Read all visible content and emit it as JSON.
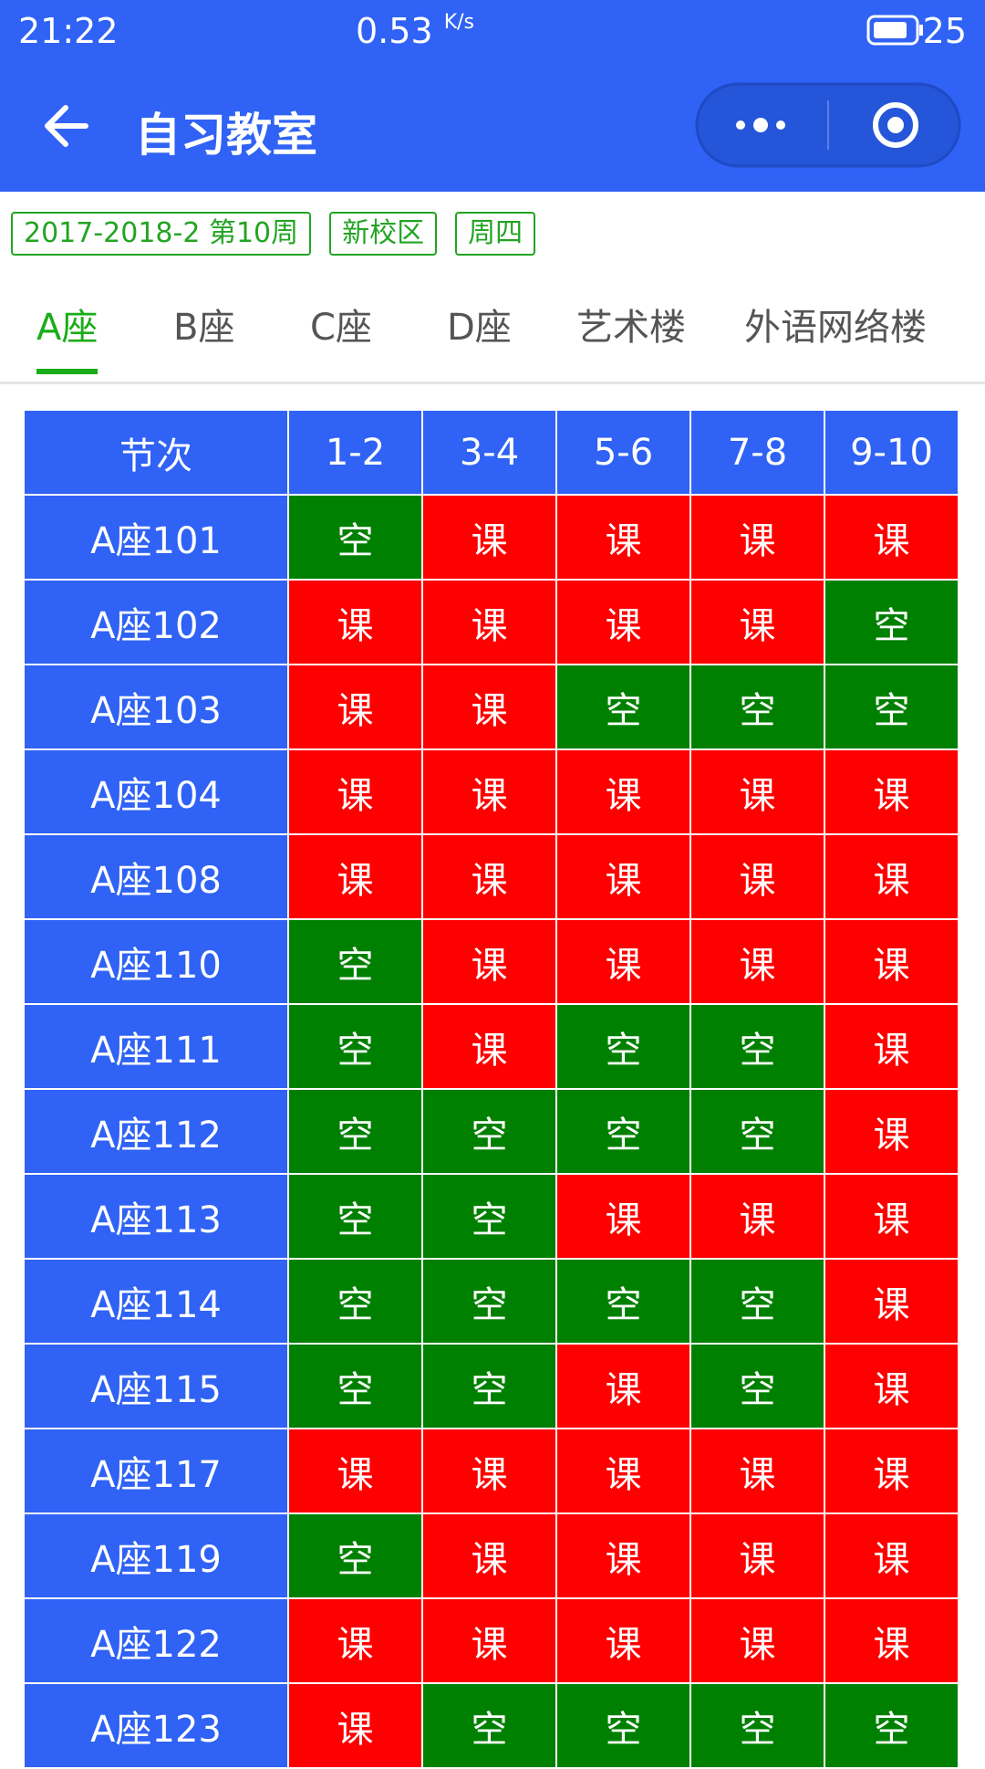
{
  "status_bar": {
    "time": "21:22",
    "speed": "0.53",
    "speed_unit": "K/s",
    "battery": "25"
  },
  "header": {
    "title": "自习教室"
  },
  "tags": [
    "2017-2018-2 第10周",
    "新校区",
    "周四"
  ],
  "tabs": [
    "A座",
    "B座",
    "C座",
    "D座",
    "艺术楼",
    "外语网络楼"
  ],
  "active_tab": 0,
  "table": {
    "colors": {
      "空": "#008000",
      "课": "#ff0000"
    },
    "header": [
      "节次",
      "1-2",
      "3-4",
      "5-6",
      "7-8",
      "9-10"
    ],
    "rows": [
      [
        "A座101",
        "空",
        "课",
        "课",
        "课",
        "课"
      ],
      [
        "A座102",
        "课",
        "课",
        "课",
        "课",
        "空"
      ],
      [
        "A座103",
        "课",
        "课",
        "空",
        "空",
        "空"
      ],
      [
        "A座104",
        "课",
        "课",
        "课",
        "课",
        "课"
      ],
      [
        "A座108",
        "课",
        "课",
        "课",
        "课",
        "课"
      ],
      [
        "A座110",
        "空",
        "课",
        "课",
        "课",
        "课"
      ],
      [
        "A座111",
        "空",
        "课",
        "空",
        "空",
        "课"
      ],
      [
        "A座112",
        "空",
        "空",
        "空",
        "空",
        "课"
      ],
      [
        "A座113",
        "空",
        "空",
        "课",
        "课",
        "课"
      ],
      [
        "A座114",
        "空",
        "空",
        "空",
        "空",
        "课"
      ],
      [
        "A座115",
        "空",
        "空",
        "课",
        "空",
        "课"
      ],
      [
        "A座117",
        "课",
        "课",
        "课",
        "课",
        "课"
      ],
      [
        "A座119",
        "空",
        "课",
        "课",
        "课",
        "课"
      ],
      [
        "A座122",
        "课",
        "课",
        "课",
        "课",
        "课"
      ],
      [
        "A座123",
        "课",
        "空",
        "空",
        "空",
        "空"
      ]
    ]
  }
}
